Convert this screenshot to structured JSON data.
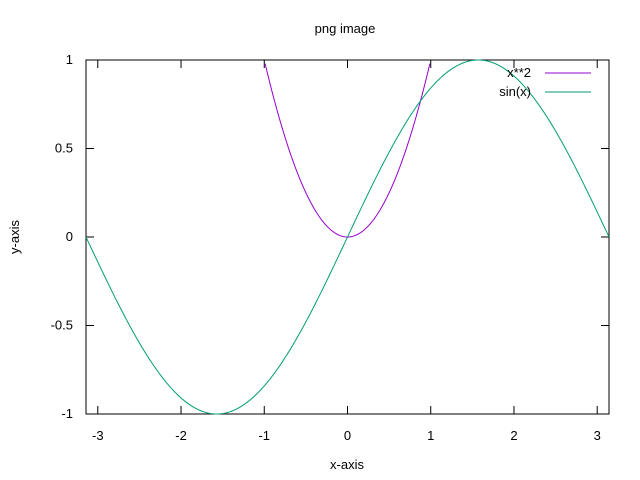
{
  "chart_data": {
    "type": "line",
    "title": "png image",
    "xlabel": "x-axis",
    "ylabel": "y-axis",
    "xlim": [
      -3.14159,
      3.14159
    ],
    "ylim": [
      -1,
      1
    ],
    "x_ticks": [
      "-3",
      "-2",
      "-1",
      "0",
      "1",
      "2",
      "3"
    ],
    "y_ticks": [
      "1",
      "0.5",
      "0",
      "-0.5",
      "-1"
    ],
    "grid": false,
    "legend_position": "top-right",
    "series": [
      {
        "name": "x**2",
        "color": "#9400d3",
        "x": [
          -1.0,
          -0.9,
          -0.8,
          -0.7,
          -0.6,
          -0.5,
          -0.4,
          -0.3,
          -0.2,
          -0.1,
          0.0,
          0.1,
          0.2,
          0.3,
          0.4,
          0.5,
          0.6,
          0.7,
          0.8,
          0.9,
          1.0
        ],
        "y": [
          1.0,
          0.81,
          0.64,
          0.49,
          0.36,
          0.25,
          0.16,
          0.09,
          0.04,
          0.01,
          0.0,
          0.01,
          0.04,
          0.09,
          0.16,
          0.25,
          0.36,
          0.49,
          0.64,
          0.81,
          1.0
        ]
      },
      {
        "name": "sin(x)",
        "color": "#009e73",
        "x": [
          -3.14,
          -2.8,
          -2.4,
          -2.0,
          -1.57,
          -1.2,
          -0.8,
          -0.4,
          0.0,
          0.4,
          0.8,
          1.2,
          1.57,
          2.0,
          2.4,
          2.8,
          3.14
        ],
        "y": [
          0.0,
          -0.33,
          -0.68,
          -0.91,
          -1.0,
          -0.93,
          -0.72,
          -0.39,
          0.0,
          0.39,
          0.72,
          0.93,
          1.0,
          0.91,
          0.68,
          0.33,
          0.0
        ]
      }
    ]
  }
}
